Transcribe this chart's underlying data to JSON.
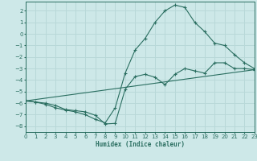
{
  "xlabel": "Humidex (Indice chaleur)",
  "xlim": [
    0,
    23
  ],
  "ylim": [
    -8.5,
    2.8
  ],
  "yticks": [
    2,
    1,
    0,
    -1,
    -2,
    -3,
    -4,
    -5,
    -6,
    -7,
    -8
  ],
  "xticks": [
    0,
    1,
    2,
    3,
    4,
    5,
    6,
    7,
    8,
    9,
    10,
    11,
    12,
    13,
    14,
    15,
    16,
    17,
    18,
    19,
    20,
    21,
    22,
    23
  ],
  "background_color": "#cde8e8",
  "grid_color": "#b8d8d8",
  "line_color": "#2a6e60",
  "lines": [
    {
      "x": [
        0,
        1,
        2,
        3,
        4,
        5,
        6,
        7,
        8,
        9,
        10,
        11,
        12,
        13,
        14,
        15,
        16,
        17,
        18,
        19,
        20,
        21,
        22,
        23
      ],
      "y": [
        -5.8,
        -5.9,
        -6.1,
        -6.4,
        -6.6,
        -6.75,
        -7.0,
        -7.4,
        -7.7,
        -6.4,
        -3.4,
        -1.4,
        -0.4,
        1.0,
        2.0,
        2.5,
        2.3,
        1.0,
        0.2,
        -0.8,
        -1.0,
        -1.8,
        -2.5,
        -3.0
      ]
    },
    {
      "x": [
        0,
        1,
        2,
        3,
        4,
        5,
        6,
        7,
        8,
        9,
        10,
        11,
        12,
        13,
        14,
        15,
        16,
        17,
        18,
        19,
        20,
        21,
        22,
        23
      ],
      "y": [
        -5.8,
        -5.9,
        -6.0,
        -6.2,
        -6.55,
        -6.65,
        -6.75,
        -7.05,
        -7.8,
        -7.75,
        -4.8,
        -3.7,
        -3.5,
        -3.75,
        -4.4,
        -3.5,
        -3.0,
        -3.2,
        -3.4,
        -2.5,
        -2.5,
        -3.0,
        -3.0,
        -3.1
      ]
    },
    {
      "x": [
        0,
        23
      ],
      "y": [
        -5.8,
        -3.1
      ]
    }
  ]
}
